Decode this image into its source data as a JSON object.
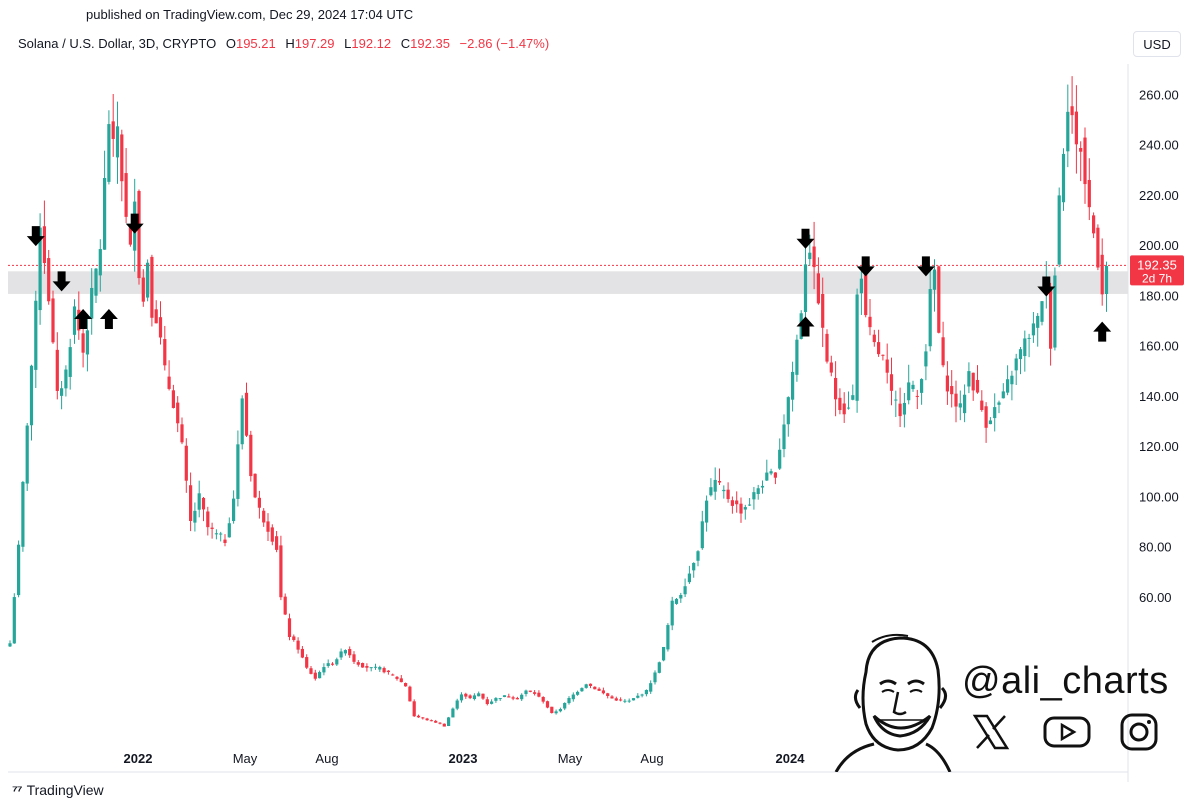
{
  "header": {
    "published": "published on TradingView.com, Dec 29, 2024 17:04 UTC",
    "symbol": "Solana / U.S. Dollar, 3D, CRYPTO",
    "o_label": "O",
    "o_value": "195.21",
    "h_label": "H",
    "h_value": "197.29",
    "l_label": "L",
    "l_value": "192.12",
    "c_label": "C",
    "c_value": "192.35",
    "change": "−2.86 (−1.47%)"
  },
  "currency": "USD",
  "brand": "TradingView",
  "watermark": {
    "handle": "@ali_charts",
    "icons": [
      "x-icon",
      "youtube-icon",
      "instagram-icon"
    ]
  },
  "colors": {
    "up": "#26a69a",
    "down": "#f23645",
    "zone": "#e3e3e5",
    "arrow": "#000000"
  },
  "chart_data": {
    "type": "candlestick",
    "title": "Solana / U.S. Dollar, 3D, CRYPTO",
    "x_ticks": [
      "2022",
      "May",
      "Aug",
      "2023",
      "May",
      "Aug",
      "2024"
    ],
    "y_ticks": [
      "60.00",
      "80.00",
      "100.00",
      "120.00",
      "140.00",
      "160.00",
      "180.00",
      "200.00",
      "220.00",
      "240.00",
      "260.00"
    ],
    "last_price": {
      "value": 192.35,
      "label": "192.35",
      "countdown": "2d 7h"
    },
    "support_zone": [
      181,
      190
    ],
    "waypoints": [
      [
        0,
        42
      ],
      [
        2,
        80
      ],
      [
        4,
        130
      ],
      [
        6,
        175
      ],
      [
        7,
        210
      ],
      [
        9,
        180
      ],
      [
        11,
        140
      ],
      [
        13,
        150
      ],
      [
        15,
        175
      ],
      [
        17,
        158
      ],
      [
        19,
        180
      ],
      [
        21,
        200
      ],
      [
        23,
        250
      ],
      [
        24,
        238
      ],
      [
        25,
        248
      ],
      [
        26,
        228
      ],
      [
        27,
        210
      ],
      [
        28,
        198
      ],
      [
        29,
        222
      ],
      [
        30,
        190
      ],
      [
        31,
        178
      ],
      [
        32,
        195
      ],
      [
        33,
        175
      ],
      [
        34,
        172
      ],
      [
        35,
        162
      ],
      [
        36,
        150
      ],
      [
        38,
        138
      ],
      [
        40,
        120
      ],
      [
        42,
        90
      ],
      [
        44,
        100
      ],
      [
        46,
        88
      ],
      [
        48,
        85
      ],
      [
        50,
        83
      ],
      [
        52,
        100
      ],
      [
        53,
        120
      ],
      [
        54,
        140
      ],
      [
        55,
        125
      ],
      [
        56,
        110
      ],
      [
        57,
        100
      ],
      [
        58,
        95
      ],
      [
        60,
        88
      ],
      [
        62,
        80
      ],
      [
        63,
        60
      ],
      [
        65,
        45
      ],
      [
        67,
        40
      ],
      [
        69,
        32
      ],
      [
        71,
        28
      ],
      [
        73,
        33
      ],
      [
        75,
        34
      ],
      [
        78,
        40
      ],
      [
        80,
        35
      ],
      [
        82,
        33
      ],
      [
        84,
        32
      ],
      [
        86,
        32
      ],
      [
        88,
        30
      ],
      [
        90,
        28
      ],
      [
        92,
        25
      ],
      [
        94,
        13
      ],
      [
        96,
        12
      ],
      [
        98,
        11
      ],
      [
        100,
        10
      ],
      [
        101,
        9
      ],
      [
        103,
        16
      ],
      [
        105,
        22
      ],
      [
        107,
        20
      ],
      [
        109,
        22
      ],
      [
        111,
        18
      ],
      [
        113,
        20
      ],
      [
        115,
        21
      ],
      [
        118,
        20
      ],
      [
        120,
        23
      ],
      [
        122,
        22
      ],
      [
        124,
        19
      ],
      [
        126,
        14
      ],
      [
        128,
        16
      ],
      [
        130,
        20
      ],
      [
        132,
        23
      ],
      [
        134,
        26
      ],
      [
        136,
        24
      ],
      [
        138,
        22
      ],
      [
        140,
        20
      ],
      [
        142,
        19
      ],
      [
        144,
        19
      ],
      [
        146,
        21
      ],
      [
        148,
        23
      ],
      [
        150,
        30
      ],
      [
        152,
        40
      ],
      [
        154,
        58
      ],
      [
        156,
        62
      ],
      [
        158,
        70
      ],
      [
        160,
        80
      ],
      [
        162,
        100
      ],
      [
        164,
        106
      ],
      [
        166,
        102
      ],
      [
        168,
        98
      ],
      [
        170,
        95
      ],
      [
        172,
        98
      ],
      [
        174,
        104
      ],
      [
        176,
        108
      ],
      [
        178,
        110
      ],
      [
        180,
        130
      ],
      [
        182,
        150
      ],
      [
        184,
        175
      ],
      [
        185,
        195
      ],
      [
        186,
        200
      ],
      [
        187,
        188
      ],
      [
        188,
        180
      ],
      [
        189,
        165
      ],
      [
        190,
        155
      ],
      [
        192,
        140
      ],
      [
        194,
        135
      ],
      [
        196,
        140
      ],
      [
        197,
        180
      ],
      [
        198,
        190
      ],
      [
        199,
        170
      ],
      [
        201,
        160
      ],
      [
        203,
        155
      ],
      [
        205,
        140
      ],
      [
        207,
        135
      ],
      [
        209,
        145
      ],
      [
        211,
        140
      ],
      [
        213,
        160
      ],
      [
        214,
        180
      ],
      [
        215,
        190
      ],
      [
        216,
        165
      ],
      [
        217,
        150
      ],
      [
        219,
        140
      ],
      [
        221,
        135
      ],
      [
        223,
        150
      ],
      [
        225,
        140
      ],
      [
        227,
        130
      ],
      [
        229,
        135
      ],
      [
        231,
        140
      ],
      [
        233,
        150
      ],
      [
        235,
        158
      ],
      [
        237,
        165
      ],
      [
        239,
        170
      ],
      [
        240,
        180
      ],
      [
        241,
        185
      ],
      [
        242,
        162
      ],
      [
        243,
        190
      ],
      [
        244,
        220
      ],
      [
        245,
        240
      ],
      [
        246,
        258
      ],
      [
        247,
        252
      ],
      [
        248,
        238
      ],
      [
        249,
        240
      ],
      [
        250,
        225
      ],
      [
        251,
        215
      ],
      [
        252,
        205
      ],
      [
        253,
        195
      ],
      [
        254,
        183
      ],
      [
        255,
        192
      ]
    ],
    "down_arrows": [
      [
        6,
        200
      ],
      [
        12,
        182
      ],
      [
        29,
        205
      ],
      [
        185,
        199
      ],
      [
        199,
        188
      ],
      [
        213,
        188
      ],
      [
        241,
        180
      ]
    ],
    "up_arrows": [
      [
        17,
        175
      ],
      [
        23,
        175
      ],
      [
        185,
        172
      ],
      [
        254,
        170
      ]
    ]
  }
}
